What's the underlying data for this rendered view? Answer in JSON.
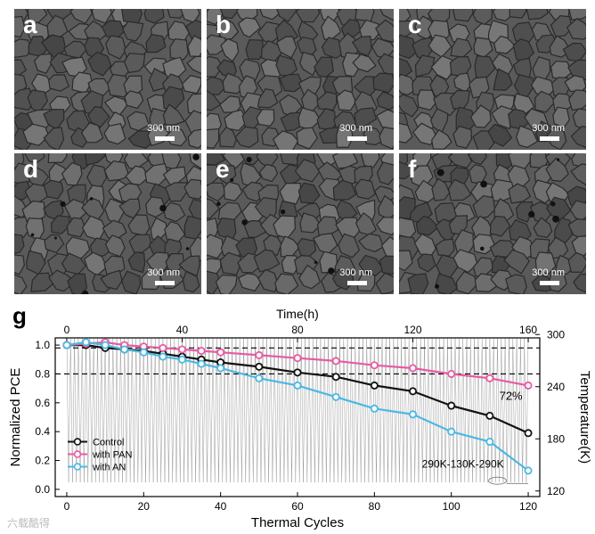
{
  "figure": {
    "panels": [
      {
        "letter": "a",
        "scale": "300 nm"
      },
      {
        "letter": "b",
        "scale": "300 nm"
      },
      {
        "letter": "c",
        "scale": "300 nm"
      },
      {
        "letter": "d",
        "scale": "300 nm"
      },
      {
        "letter": "e",
        "scale": "300 nm"
      },
      {
        "letter": "f",
        "scale": "300 nm"
      }
    ],
    "chart_panel_letter": "g",
    "watermark": "六载酷得"
  },
  "chart_data": {
    "type": "line",
    "xlabel": "Thermal Cycles",
    "ylabel": "Normalized PCE",
    "top_xlabel": "Time(h)",
    "right_ylabel": "Temperature(K)",
    "xlim": [
      -3,
      123
    ],
    "ylim": [
      -0.05,
      1.05
    ],
    "x_ticks": [
      0,
      20,
      40,
      60,
      80,
      100,
      120
    ],
    "y_ticks": [
      0.0,
      0.2,
      0.4,
      0.6,
      0.8,
      1.0
    ],
    "top_ticks": [
      0,
      40,
      80,
      120,
      160
    ],
    "right_ticks": [
      120,
      180,
      240,
      300
    ],
    "hlines": [
      0.98,
      0.8
    ],
    "series": [
      {
        "name": "Control",
        "color": "#111111",
        "x": [
          0,
          5,
          10,
          15,
          20,
          25,
          30,
          35,
          40,
          50,
          60,
          70,
          80,
          90,
          100,
          110,
          120
        ],
        "values": [
          1.0,
          1.0,
          0.98,
          0.97,
          0.96,
          0.94,
          0.92,
          0.9,
          0.88,
          0.85,
          0.81,
          0.78,
          0.72,
          0.68,
          0.58,
          0.51,
          0.39
        ]
      },
      {
        "name": "with PAN",
        "color": "#e85aa3",
        "x": [
          0,
          5,
          10,
          15,
          20,
          25,
          30,
          35,
          40,
          50,
          60,
          70,
          80,
          90,
          100,
          110,
          120
        ],
        "values": [
          1.0,
          1.01,
          1.02,
          1.0,
          0.99,
          0.98,
          0.97,
          0.96,
          0.95,
          0.93,
          0.91,
          0.89,
          0.86,
          0.84,
          0.8,
          0.77,
          0.72
        ]
      },
      {
        "name": "with AN",
        "color": "#4ab8e3",
        "x": [
          0,
          5,
          10,
          15,
          20,
          25,
          30,
          35,
          40,
          50,
          60,
          70,
          80,
          90,
          100,
          110,
          120
        ],
        "values": [
          1.0,
          1.02,
          1.0,
          0.97,
          0.95,
          0.92,
          0.9,
          0.87,
          0.84,
          0.77,
          0.72,
          0.64,
          0.56,
          0.52,
          0.4,
          0.33,
          0.13
        ]
      }
    ],
    "annotations": [
      "72%",
      "290K-130K-290K"
    ]
  }
}
